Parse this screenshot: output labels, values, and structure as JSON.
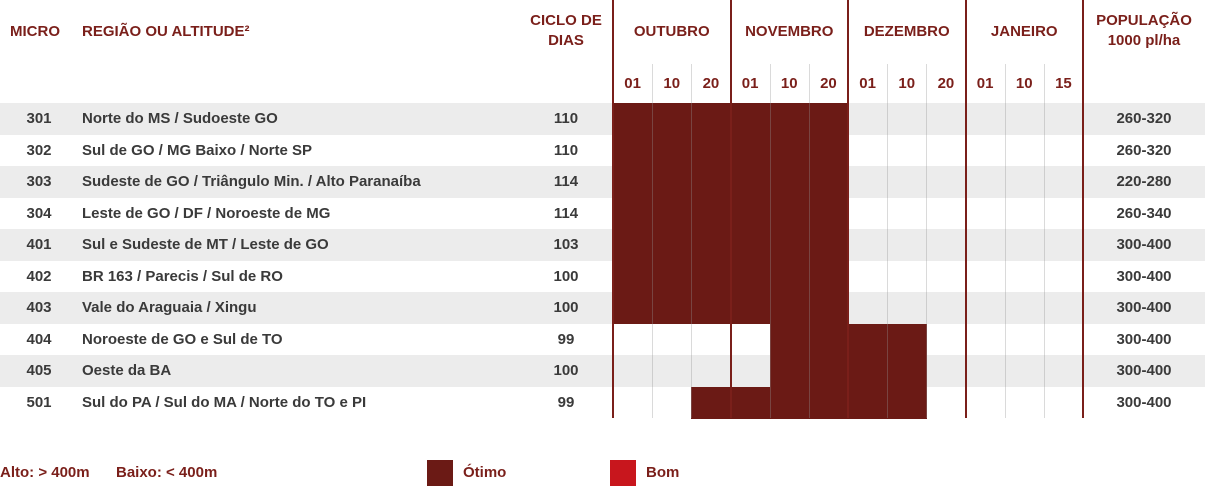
{
  "header": {
    "micro": "MICRO",
    "region": "REGIÃO OU ALTITUDE²",
    "cycle": "CICLO DE DIAS",
    "population": "POPULAÇÃO 1000 pl/ha"
  },
  "months": [
    {
      "name": "OUTUBRO",
      "days": [
        "01",
        "10",
        "20"
      ]
    },
    {
      "name": "NOVEMBRO",
      "days": [
        "01",
        "10",
        "20"
      ]
    },
    {
      "name": "DEZEMBRO",
      "days": [
        "01",
        "10",
        "20"
      ]
    },
    {
      "name": "JANEIRO",
      "days": [
        "01",
        "10",
        "15"
      ]
    }
  ],
  "rows": [
    {
      "micro": "301",
      "region": "Norte do MS / Sudoeste GO",
      "cycle": "110",
      "population": "260-320",
      "cells": [
        "Ótimo",
        "Ótimo",
        "Ótimo",
        "Ótimo",
        "Ótimo",
        "Ótimo",
        null,
        null,
        null,
        null,
        null,
        null
      ]
    },
    {
      "micro": "302",
      "region": "Sul de GO / MG Baixo / Norte SP",
      "cycle": "110",
      "population": "260-320",
      "cells": [
        "Ótimo",
        "Ótimo",
        "Ótimo",
        "Ótimo",
        "Ótimo",
        "Ótimo",
        null,
        null,
        null,
        null,
        null,
        null
      ]
    },
    {
      "micro": "303",
      "region": "Sudeste de GO / Triângulo Min. / Alto Paranaíba",
      "cycle": "114",
      "population": "220-280",
      "cells": [
        "Ótimo",
        "Ótimo",
        "Ótimo",
        "Ótimo",
        "Ótimo",
        "Ótimo",
        null,
        null,
        null,
        null,
        null,
        null
      ]
    },
    {
      "micro": "304",
      "region": "Leste de GO / DF / Noroeste de MG",
      "cycle": "114",
      "population": "260-340",
      "cells": [
        "Ótimo",
        "Ótimo",
        "Ótimo",
        "Ótimo",
        "Ótimo",
        "Ótimo",
        null,
        null,
        null,
        null,
        null,
        null
      ]
    },
    {
      "micro": "401",
      "region": "Sul e Sudeste de MT / Leste de GO",
      "cycle": "103",
      "population": "300-400",
      "cells": [
        "Ótimo",
        "Ótimo",
        "Ótimo",
        "Ótimo",
        "Ótimo",
        "Ótimo",
        null,
        null,
        null,
        null,
        null,
        null
      ]
    },
    {
      "micro": "402",
      "region": "BR 163 / Parecis / Sul de RO",
      "cycle": "100",
      "population": "300-400",
      "cells": [
        "Ótimo",
        "Ótimo",
        "Ótimo",
        "Ótimo",
        "Ótimo",
        "Ótimo",
        null,
        null,
        null,
        null,
        null,
        null
      ]
    },
    {
      "micro": "403",
      "region": "Vale do Araguaia / Xingu",
      "cycle": "100",
      "population": "300-400",
      "cells": [
        "Ótimo",
        "Ótimo",
        "Ótimo",
        "Ótimo",
        "Ótimo",
        "Ótimo",
        null,
        null,
        null,
        null,
        null,
        null
      ]
    },
    {
      "micro": "404",
      "region": "Noroeste de GO e Sul de TO",
      "cycle": "99",
      "population": "300-400",
      "cells": [
        null,
        null,
        null,
        null,
        "Ótimo",
        "Ótimo",
        "Ótimo",
        "Ótimo",
        null,
        null,
        null,
        null
      ]
    },
    {
      "micro": "405",
      "region": "Oeste da BA",
      "cycle": "100",
      "population": "300-400",
      "cells": [
        null,
        null,
        null,
        null,
        "Ótimo",
        "Ótimo",
        "Ótimo",
        "Ótimo",
        null,
        null,
        null,
        null
      ]
    },
    {
      "micro": "501",
      "region": "Sul do PA / Sul do MA / Norte do TO e PI",
      "cycle": "99",
      "population": "300-400",
      "cells": [
        null,
        null,
        "Ótimo",
        "Ótimo",
        "Ótimo",
        "Ótimo",
        "Ótimo",
        "Ótimo",
        null,
        null,
        null,
        null
      ]
    }
  ],
  "legend": {
    "notes": [
      "Alto: > 400m",
      "Baixo: < 400m"
    ],
    "items": [
      {
        "label": "Ótimo",
        "color": "#6b1a15"
      },
      {
        "label": "Bom",
        "color": "#c8161d"
      }
    ]
  }
}
